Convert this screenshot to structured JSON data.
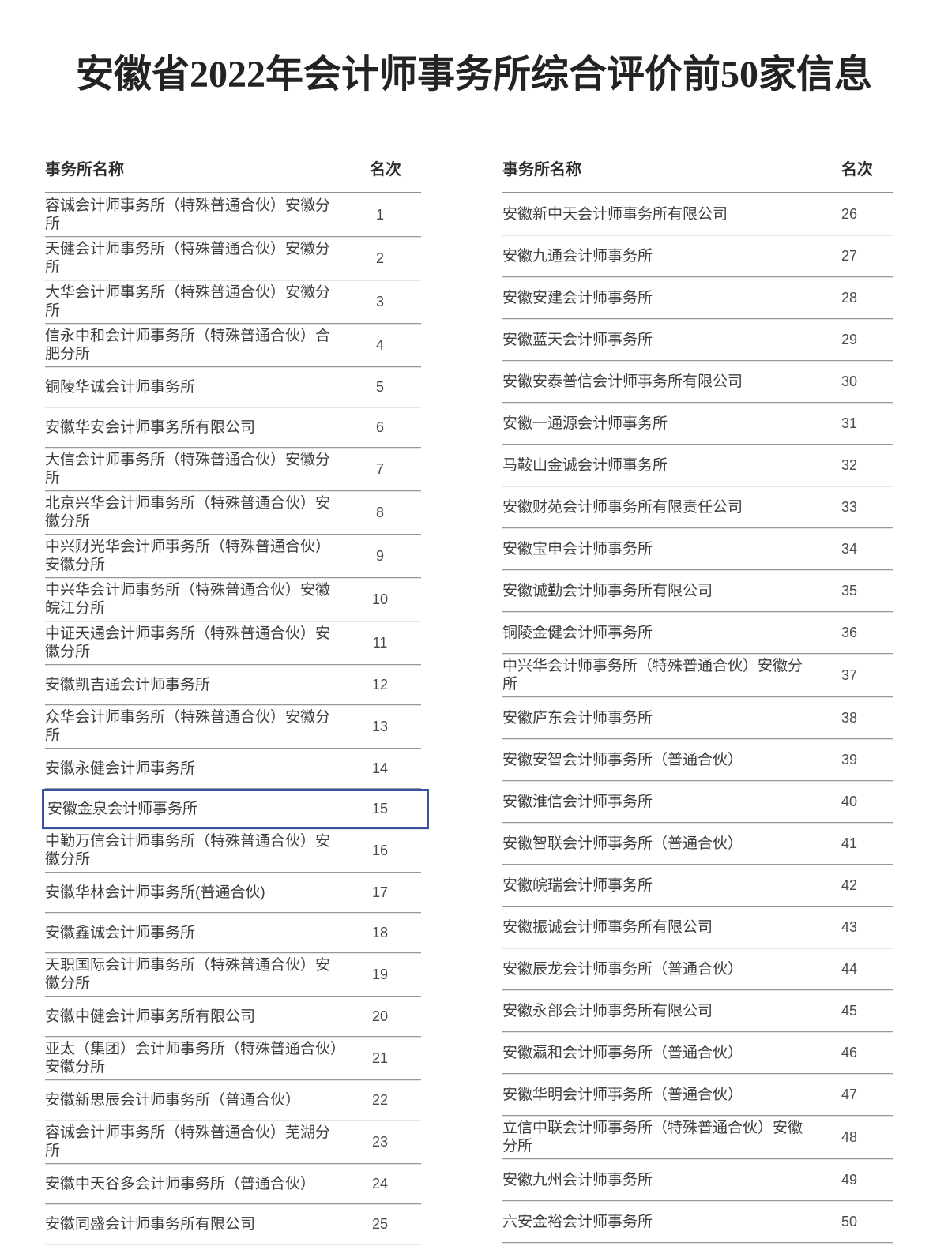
{
  "title": "安徽省2022年会计师事务所综合评价前50家信息",
  "columns": {
    "name_header": "事务所名称",
    "rank_header": "名次"
  },
  "highlight": {
    "rank": "15",
    "border_color": "#3c51a6"
  },
  "left_rows": [
    {
      "name": "容诚会计师事务所（特殊普通合伙）安徽分所",
      "rank": "1"
    },
    {
      "name": "天健会计师事务所（特殊普通合伙）安徽分所",
      "rank": "2"
    },
    {
      "name": "大华会计师事务所（特殊普通合伙）安徽分所",
      "rank": "3"
    },
    {
      "name": "信永中和会计师事务所（特殊普通合伙）合肥分所",
      "rank": "4"
    },
    {
      "name": "铜陵华诚会计师事务所",
      "rank": "5"
    },
    {
      "name": "安徽华安会计师事务所有限公司",
      "rank": "6"
    },
    {
      "name": "大信会计师事务所（特殊普通合伙）安徽分所",
      "rank": "7"
    },
    {
      "name": "北京兴华会计师事务所（特殊普通合伙）安徽分所",
      "rank": "8"
    },
    {
      "name": "中兴财光华会计师事务所（特殊普通合伙）安徽分所",
      "rank": "9"
    },
    {
      "name": "中兴华会计师事务所（特殊普通合伙）安徽皖江分所",
      "rank": "10"
    },
    {
      "name": "中证天通会计师事务所（特殊普通合伙）安徽分所",
      "rank": "11"
    },
    {
      "name": "安徽凯吉通会计师事务所",
      "rank": "12"
    },
    {
      "name": "众华会计师事务所（特殊普通合伙）安徽分所",
      "rank": "13"
    },
    {
      "name": "安徽永健会计师事务所",
      "rank": "14"
    },
    {
      "name": "安徽金泉会计师事务所",
      "rank": "15",
      "highlighted": true
    },
    {
      "name": "中勤万信会计师事务所（特殊普通合伙）安徽分所",
      "rank": "16"
    },
    {
      "name": "安徽华林会计师事务所(普通合伙)",
      "rank": "17"
    },
    {
      "name": "安徽鑫诚会计师事务所",
      "rank": "18"
    },
    {
      "name": "天职国际会计师事务所（特殊普通合伙）安徽分所",
      "rank": "19"
    },
    {
      "name": "安徽中健会计师事务所有限公司",
      "rank": "20"
    },
    {
      "name": "亚太（集团）会计师事务所（特殊普通合伙）安徽分所",
      "rank": "21"
    },
    {
      "name": "安徽新思辰会计师事务所（普通合伙）",
      "rank": "22"
    },
    {
      "name": "容诚会计师事务所（特殊普通合伙）芜湖分所",
      "rank": "23"
    },
    {
      "name": "安徽中天谷多会计师事务所（普通合伙）",
      "rank": "24"
    },
    {
      "name": "安徽同盛会计师事务所有限公司",
      "rank": "25"
    }
  ],
  "right_rows": [
    {
      "name": "安徽新中天会计师事务所有限公司",
      "rank": "26"
    },
    {
      "name": "安徽九通会计师事务所",
      "rank": "27"
    },
    {
      "name": "安徽安建会计师事务所",
      "rank": "28"
    },
    {
      "name": "安徽蓝天会计师事务所",
      "rank": "29"
    },
    {
      "name": "安徽安泰普信会计师事务所有限公司",
      "rank": "30"
    },
    {
      "name": "安徽一通源会计师事务所",
      "rank": "31"
    },
    {
      "name": "马鞍山金诚会计师事务所",
      "rank": "32"
    },
    {
      "name": "安徽财苑会计师事务所有限责任公司",
      "rank": "33"
    },
    {
      "name": "安徽宝申会计师事务所",
      "rank": "34"
    },
    {
      "name": "安徽诚勤会计师事务所有限公司",
      "rank": "35"
    },
    {
      "name": "铜陵金健会计师事务所",
      "rank": "36"
    },
    {
      "name": "中兴华会计师事务所（特殊普通合伙）安徽分所",
      "rank": "37"
    },
    {
      "name": "安徽庐东会计师事务所",
      "rank": "38"
    },
    {
      "name": "安徽安智会计师事务所（普通合伙）",
      "rank": "39"
    },
    {
      "name": "安徽淮信会计师事务所",
      "rank": "40"
    },
    {
      "name": "安徽智联会计师事务所（普通合伙）",
      "rank": "41"
    },
    {
      "name": "安徽皖瑞会计师事务所",
      "rank": "42"
    },
    {
      "name": "安徽振诚会计师事务所有限公司",
      "rank": "43"
    },
    {
      "name": "安徽辰龙会计师事务所（普通合伙）",
      "rank": "44"
    },
    {
      "name": "安徽永郃会计师事务所有限公司",
      "rank": "45"
    },
    {
      "name": "安徽瀛和会计师事务所（普通合伙）",
      "rank": "46"
    },
    {
      "name": "安徽华明会计师事务所（普通合伙）",
      "rank": "47"
    },
    {
      "name": "立信中联会计师事务所（特殊普通合伙）安徽分所",
      "rank": "48"
    },
    {
      "name": "安徽九州会计师事务所",
      "rank": "49"
    },
    {
      "name": "六安金裕会计师事务所",
      "rank": "50"
    }
  ]
}
